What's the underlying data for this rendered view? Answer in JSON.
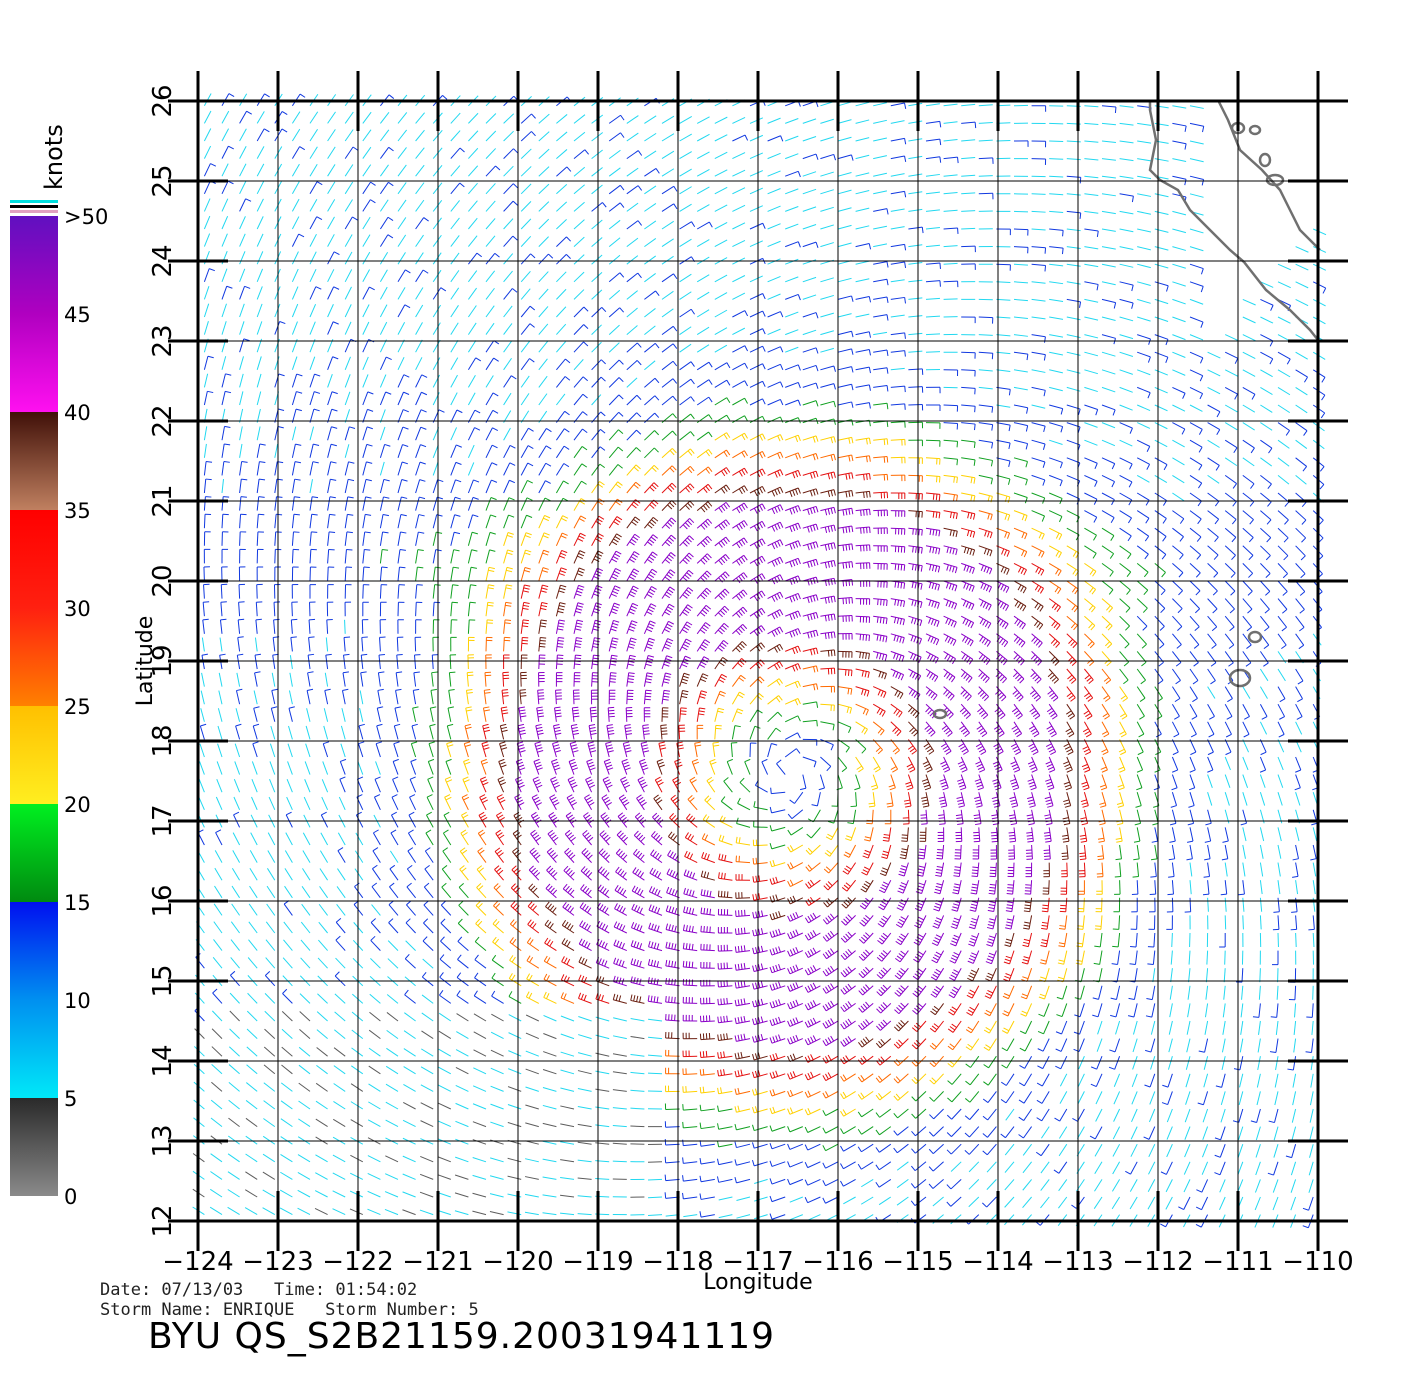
{
  "map": {
    "lon_ticks": [
      "−124",
      "−123",
      "−122",
      "−121",
      "−120",
      "−119",
      "−118",
      "−117",
      "−116",
      "−115",
      "−114",
      "−113",
      "−112",
      "−111",
      "−110"
    ],
    "lat_ticks": [
      "12",
      "13",
      "14",
      "15",
      "16",
      "17",
      "18",
      "19",
      "20",
      "21",
      "22",
      "23",
      "24",
      "25",
      "26"
    ],
    "xlabel": "Longitude",
    "ylabel": "Latitude",
    "lon_range": [
      -124,
      -110
    ],
    "lat_range": [
      12,
      26
    ],
    "storm_center": {
      "lon": -116.6,
      "lat": 17.6
    }
  },
  "colorbar": {
    "unit": "knots",
    "labels": [
      "0",
      "5",
      "10",
      "15",
      "20",
      "25",
      "30",
      "35",
      "40",
      "45",
      ">50"
    ],
    "colors": {
      "calm": "#5c5c5c",
      "light": "#22d8f0",
      "moderate": "#1038e0",
      "fresh": "#10a020",
      "strong": "#ffd000",
      "gale": "#ff6a00",
      "storm": "#e41010",
      "severe": "#6a1e10",
      "violent": "#8a00c8"
    }
  },
  "metadata": {
    "date_line": "Date: 07/13/03   Time: 01:54:02",
    "storm_line": "Storm Name: ENRIQUE   Storm Number: 5",
    "product": "BYU QS_S2B21159.20031941119"
  }
}
